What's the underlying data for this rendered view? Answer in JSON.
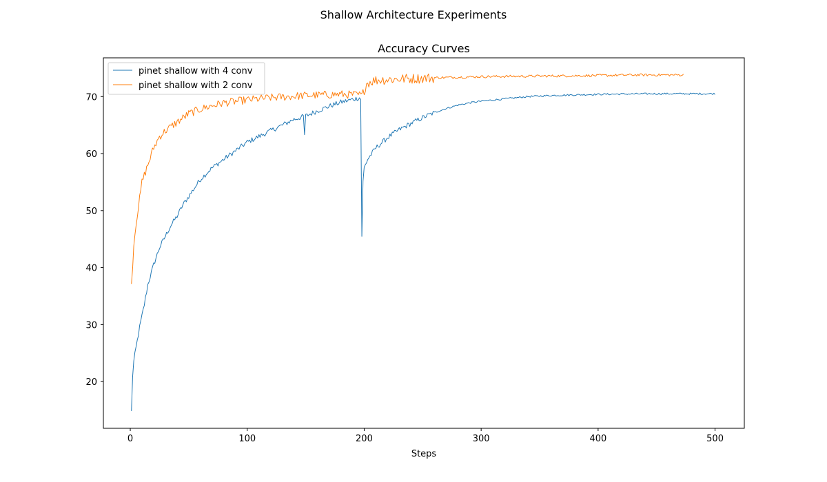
{
  "figure": {
    "suptitle": "Shallow Architecture Experiments"
  },
  "chart_data": {
    "type": "line",
    "title": "Accuracy Curves",
    "xlabel": "Steps",
    "ylabel": "",
    "xlim": [
      -23,
      525
    ],
    "ylim": [
      11.8,
      76.8
    ],
    "xticks": [
      0,
      100,
      200,
      300,
      400,
      500
    ],
    "yticks": [
      20,
      30,
      40,
      50,
      60,
      70
    ],
    "grid": false,
    "legend": {
      "position": "top-left"
    },
    "series": [
      {
        "name": "pinet shallow with 4 conv",
        "color": "#1f77b4",
        "x_start": 1,
        "x_end": 500,
        "x_step": 1,
        "anchors": [
          [
            1,
            14.7
          ],
          [
            2,
            21
          ],
          [
            3,
            23.5
          ],
          [
            5,
            26
          ],
          [
            8,
            29.5
          ],
          [
            12,
            33.5
          ],
          [
            15,
            37
          ],
          [
            20,
            40.5
          ],
          [
            25,
            43.5
          ],
          [
            30,
            45.5
          ],
          [
            35,
            47.5
          ],
          [
            40,
            49
          ],
          [
            45,
            51
          ],
          [
            50,
            52.5
          ],
          [
            55,
            54
          ],
          [
            60,
            55.5
          ],
          [
            70,
            57.5
          ],
          [
            80,
            59
          ],
          [
            90,
            60.5
          ],
          [
            100,
            62
          ],
          [
            110,
            63
          ],
          [
            120,
            64
          ],
          [
            130,
            65
          ],
          [
            140,
            66
          ],
          [
            148,
            66.5
          ],
          [
            149,
            63.3
          ],
          [
            150,
            66.6
          ],
          [
            160,
            67.5
          ],
          [
            170,
            68.3
          ],
          [
            180,
            69
          ],
          [
            190,
            69.5
          ],
          [
            196,
            69.8
          ],
          [
            197,
            69.5
          ],
          [
            198,
            45.6
          ],
          [
            199,
            55
          ],
          [
            200,
            57.5
          ],
          [
            203,
            59
          ],
          [
            210,
            61
          ],
          [
            220,
            62.8
          ],
          [
            230,
            64.2
          ],
          [
            240,
            65.3
          ],
          [
            250,
            66.3
          ],
          [
            260,
            67.2
          ],
          [
            270,
            67.9
          ],
          [
            280,
            68.5
          ],
          [
            290,
            68.9
          ],
          [
            300,
            69.2
          ],
          [
            320,
            69.6
          ],
          [
            340,
            70
          ],
          [
            360,
            70.2
          ],
          [
            380,
            70.3
          ],
          [
            400,
            70.4
          ],
          [
            420,
            70.45
          ],
          [
            450,
            70.5
          ],
          [
            500,
            70.5
          ]
        ],
        "noise": [
          0.45,
          0.45,
          0.15
        ]
      },
      {
        "name": "pinet shallow with 2 conv",
        "color": "#ff7f0e",
        "x_start": 1,
        "x_end": 473,
        "x_step": 1,
        "anchors": [
          [
            1,
            37
          ],
          [
            3,
            44
          ],
          [
            5,
            48
          ],
          [
            8,
            52
          ],
          [
            10,
            55
          ],
          [
            15,
            58
          ],
          [
            20,
            61
          ],
          [
            25,
            63
          ],
          [
            30,
            64
          ],
          [
            40,
            65.5
          ],
          [
            50,
            67
          ],
          [
            60,
            67.8
          ],
          [
            70,
            68.4
          ],
          [
            80,
            68.9
          ],
          [
            100,
            69.4
          ],
          [
            120,
            69.8
          ],
          [
            150,
            70.2
          ],
          [
            180,
            70.4
          ],
          [
            196,
            70.3
          ],
          [
            198,
            70.2
          ],
          [
            200,
            71.2
          ],
          [
            202,
            72.3
          ],
          [
            205,
            72.6
          ],
          [
            210,
            72.9
          ],
          [
            230,
            73.1
          ],
          [
            260,
            73.3
          ],
          [
            300,
            73.5
          ],
          [
            350,
            73.6
          ],
          [
            400,
            73.7
          ],
          [
            430,
            73.8
          ],
          [
            473,
            73.8
          ]
        ],
        "noise": [
          0.7,
          0.9,
          0.22
        ]
      }
    ]
  }
}
